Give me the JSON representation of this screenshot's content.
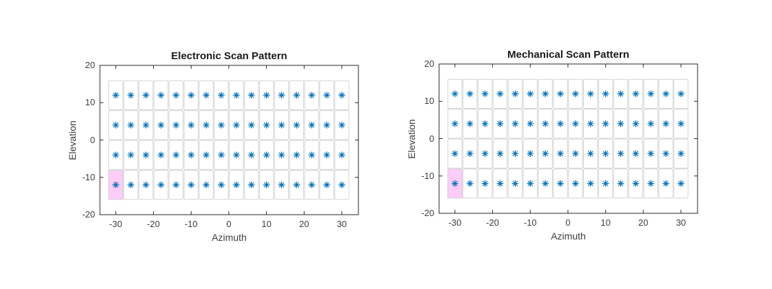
{
  "figure": {
    "background": "#ffffff"
  },
  "style": {
    "marker_color": "#0072BD",
    "highlight_fill": "#fdccf8",
    "cell_border_color": "#d4d4d4",
    "axes_color": "#262626",
    "tick_label_color": "#3d3d3d",
    "title_color": "#1a1a1a"
  },
  "chart_data": [
    {
      "type": "scatter",
      "title": "Electronic Scan Pattern",
      "xlabel": "Azimuth",
      "ylabel": "Elevation",
      "xlim": [
        -34.2,
        34.4
      ],
      "ylim": [
        -20,
        20
      ],
      "xticks": [
        -30,
        -20,
        -10,
        0,
        10,
        20,
        30
      ],
      "yticks": [
        20,
        10,
        0,
        -10,
        -20
      ],
      "marker": "*",
      "azimuth_beam_centers": [
        -30,
        -26,
        -22,
        -18,
        -14,
        -10,
        -6,
        -2,
        2,
        6,
        10,
        14,
        18,
        22,
        26,
        30
      ],
      "elevation_beam_centers": [
        12,
        4,
        -4,
        -12
      ],
      "beam_cell_width_deg": 4,
      "beam_cell_height_deg": 8,
      "highlighted_beam": {
        "azimuth": -30,
        "elevation": -12
      },
      "grid": "on",
      "legend": "none"
    },
    {
      "type": "scatter",
      "title": "Mechanical Scan Pattern",
      "xlabel": "Azimuth",
      "ylabel": "Elevation",
      "xlim": [
        -34.2,
        34.4
      ],
      "ylim": [
        -20,
        20
      ],
      "xticks": [
        -30,
        -20,
        -10,
        0,
        10,
        20,
        30
      ],
      "yticks": [
        20,
        10,
        0,
        -10,
        -20
      ],
      "marker": "*",
      "azimuth_beam_centers": [
        -30,
        -26,
        -22,
        -18,
        -14,
        -10,
        -6,
        -2,
        2,
        6,
        10,
        14,
        18,
        22,
        26,
        30
      ],
      "elevation_beam_centers": [
        12,
        4,
        -4,
        -12
      ],
      "beam_cell_width_deg": 4,
      "beam_cell_height_deg": 8,
      "highlighted_beam": {
        "azimuth": -30,
        "elevation": -12
      },
      "grid": "on",
      "legend": "none"
    }
  ]
}
